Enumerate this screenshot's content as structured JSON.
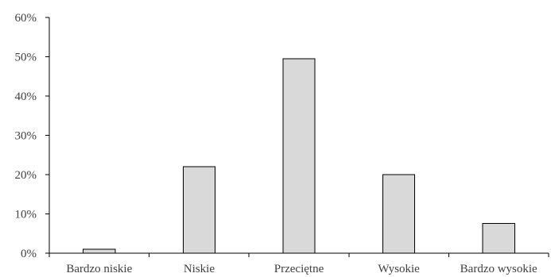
{
  "chart_data": {
    "type": "bar",
    "title": "",
    "xlabel": "",
    "ylabel": "",
    "categories": [
      "Bardzo niskie",
      "Niskie",
      "Przeciętne",
      "Wysokie",
      "Bardzo wysokie"
    ],
    "values": [
      0.01,
      0.22,
      0.495,
      0.2,
      0.076
    ],
    "ylim": [
      0,
      0.6
    ],
    "yticks": [
      0,
      0.1,
      0.2,
      0.3,
      0.4,
      0.5,
      0.6
    ],
    "ytick_labels": [
      "0%",
      "10%",
      "20%",
      "30%",
      "40%",
      "50%",
      "60%"
    ],
    "grid": false,
    "legend": "none",
    "bar_fill": "#d9d9d9",
    "bar_stroke": "#000000",
    "tick_label_color": "#404040"
  }
}
